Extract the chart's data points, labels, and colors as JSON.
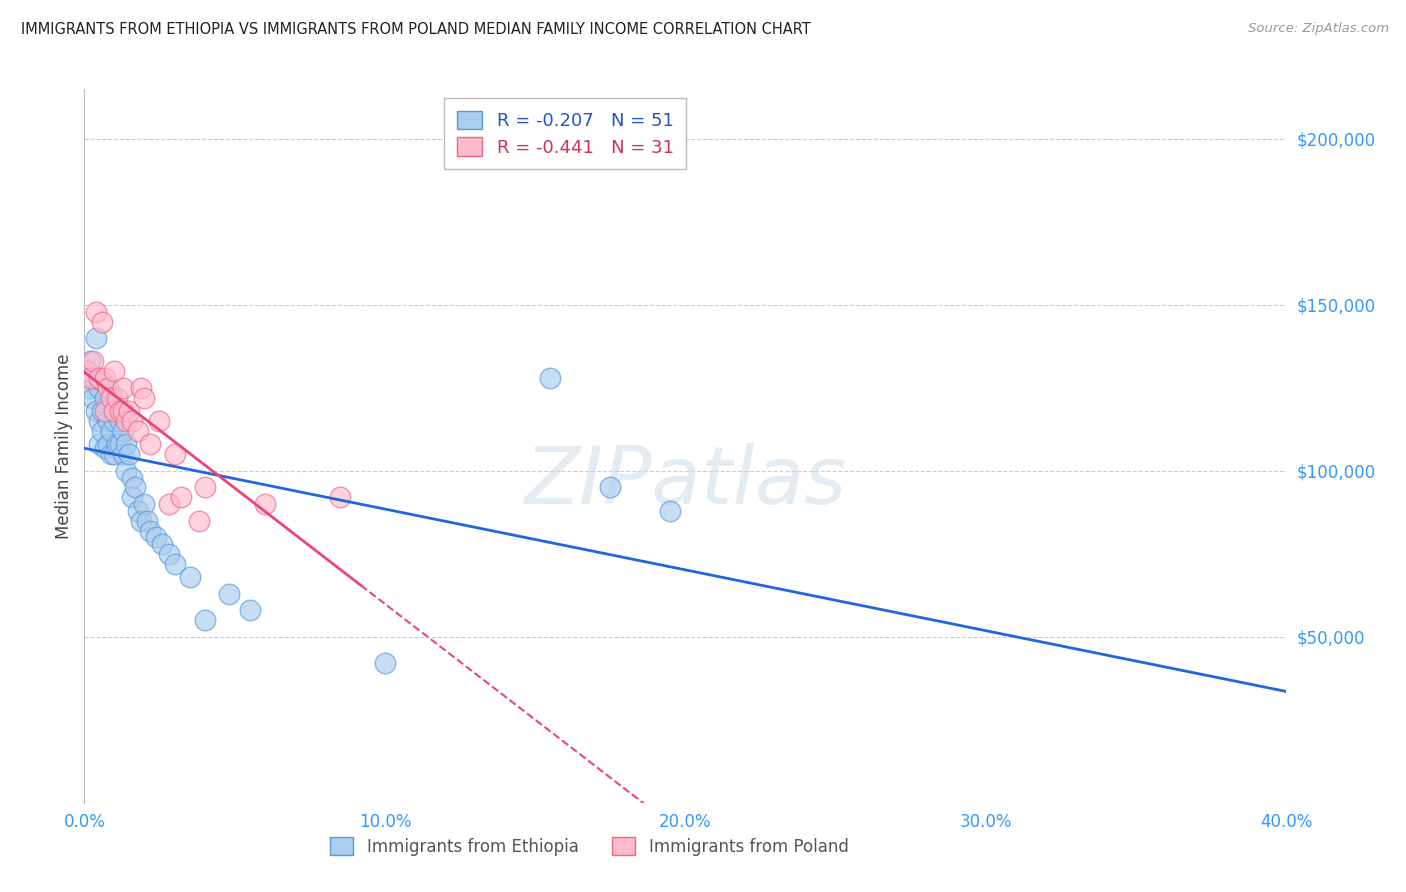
{
  "title": "IMMIGRANTS FROM ETHIOPIA VS IMMIGRANTS FROM POLAND MEDIAN FAMILY INCOME CORRELATION CHART",
  "source": "Source: ZipAtlas.com",
  "ylabel": "Median Family Income",
  "xlabel_ticks": [
    "0.0%",
    "10.0%",
    "20.0%",
    "30.0%",
    "40.0%"
  ],
  "ytick_labels": [
    "$50,000",
    "$100,000",
    "$150,000",
    "$200,000"
  ],
  "ytick_values": [
    50000,
    100000,
    150000,
    200000
  ],
  "xlim": [
    0,
    0.4
  ],
  "ylim": [
    0,
    215000
  ],
  "ethiopia_R": -0.207,
  "ethiopia_N": 51,
  "poland_R": -0.441,
  "poland_N": 31,
  "color_ethiopia_face": "#AACCEE",
  "color_ethiopia_edge": "#5599DD",
  "color_poland_face": "#FFBBCC",
  "color_poland_edge": "#EE6688",
  "color_trendline_ethiopia": "#2266DD",
  "color_trendline_poland": "#EE4477",
  "watermark": "ZIPatlas",
  "ethiopia_x": [
    0.001,
    0.002,
    0.002,
    0.003,
    0.003,
    0.004,
    0.004,
    0.005,
    0.005,
    0.005,
    0.006,
    0.006,
    0.006,
    0.007,
    0.007,
    0.008,
    0.008,
    0.009,
    0.009,
    0.009,
    0.01,
    0.01,
    0.011,
    0.011,
    0.012,
    0.012,
    0.013,
    0.013,
    0.014,
    0.014,
    0.015,
    0.016,
    0.016,
    0.017,
    0.018,
    0.019,
    0.02,
    0.021,
    0.022,
    0.024,
    0.026,
    0.028,
    0.03,
    0.035,
    0.04,
    0.048,
    0.055,
    0.1,
    0.155,
    0.175,
    0.195
  ],
  "ethiopia_y": [
    130000,
    125000,
    133000,
    128000,
    122000,
    140000,
    118000,
    125000,
    115000,
    108000,
    127000,
    118000,
    112000,
    122000,
    107000,
    115000,
    108000,
    123000,
    112000,
    105000,
    115000,
    105000,
    118000,
    108000,
    115000,
    108000,
    112000,
    105000,
    108000,
    100000,
    105000,
    98000,
    92000,
    95000,
    88000,
    85000,
    90000,
    85000,
    82000,
    80000,
    78000,
    75000,
    72000,
    68000,
    55000,
    63000,
    58000,
    42000,
    128000,
    95000,
    88000
  ],
  "poland_x": [
    0.001,
    0.002,
    0.003,
    0.004,
    0.005,
    0.006,
    0.007,
    0.007,
    0.008,
    0.009,
    0.01,
    0.01,
    0.011,
    0.012,
    0.013,
    0.013,
    0.014,
    0.015,
    0.016,
    0.018,
    0.019,
    0.02,
    0.022,
    0.025,
    0.028,
    0.03,
    0.032,
    0.038,
    0.04,
    0.06,
    0.085
  ],
  "poland_y": [
    130000,
    128000,
    133000,
    148000,
    128000,
    145000,
    118000,
    128000,
    125000,
    122000,
    130000,
    118000,
    122000,
    118000,
    125000,
    118000,
    115000,
    118000,
    115000,
    112000,
    125000,
    122000,
    108000,
    115000,
    90000,
    105000,
    92000,
    85000,
    95000,
    90000,
    92000
  ]
}
